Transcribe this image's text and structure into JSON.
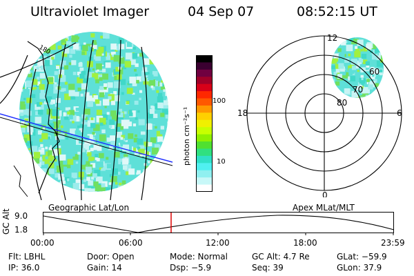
{
  "header": {
    "title": "Ultraviolet Imager",
    "date": "04 Sep 07",
    "time": "08:52:15 UT"
  },
  "colorbar": {
    "unit_label": "photon cm⁻²s⁻¹",
    "tick_labels": [
      "100",
      "10"
    ],
    "colors_top_to_bottom": [
      "#000000",
      "#3a0030",
      "#700040",
      "#a00028",
      "#d80018",
      "#ff2800",
      "#ff5800",
      "#ff9800",
      "#ffd000",
      "#f0f000",
      "#c8ff00",
      "#90f000",
      "#50e030",
      "#30e080",
      "#30e0c8",
      "#50f0f0",
      "#90f0f0",
      "#c8f8f8",
      "#ffffff"
    ]
  },
  "left_panel": {
    "caption": "Geographic Lat/Lon",
    "map_label": "180"
  },
  "right_panel": {
    "caption": "Apex MLat/MLT",
    "mlt_labels": {
      "top": "12",
      "left": "18",
      "right": "6",
      "bottom": "0"
    },
    "mlat_labels": [
      "60",
      "70",
      "80"
    ]
  },
  "altitude_plot": {
    "ylabel": "GC Alt",
    "yticks": [
      "9.0",
      "1.8"
    ],
    "xticks": [
      "00:00",
      "06:00",
      "12:00",
      "18:00",
      "23:59"
    ],
    "marker_color": "#dd0000"
  },
  "info": {
    "flt": "Flt: LBHL",
    "door": "Door: Open",
    "mode": "Mode: Normal",
    "gcalt": "GC Alt: 4.7 Re",
    "glat": "GLat: −59.9",
    "ip": "IP: 36.0",
    "gain": "Gain: 14",
    "dsp": "Dsp:    −5.9",
    "seq": "Seq: 39",
    "glon": "GLon: 37.9"
  }
}
